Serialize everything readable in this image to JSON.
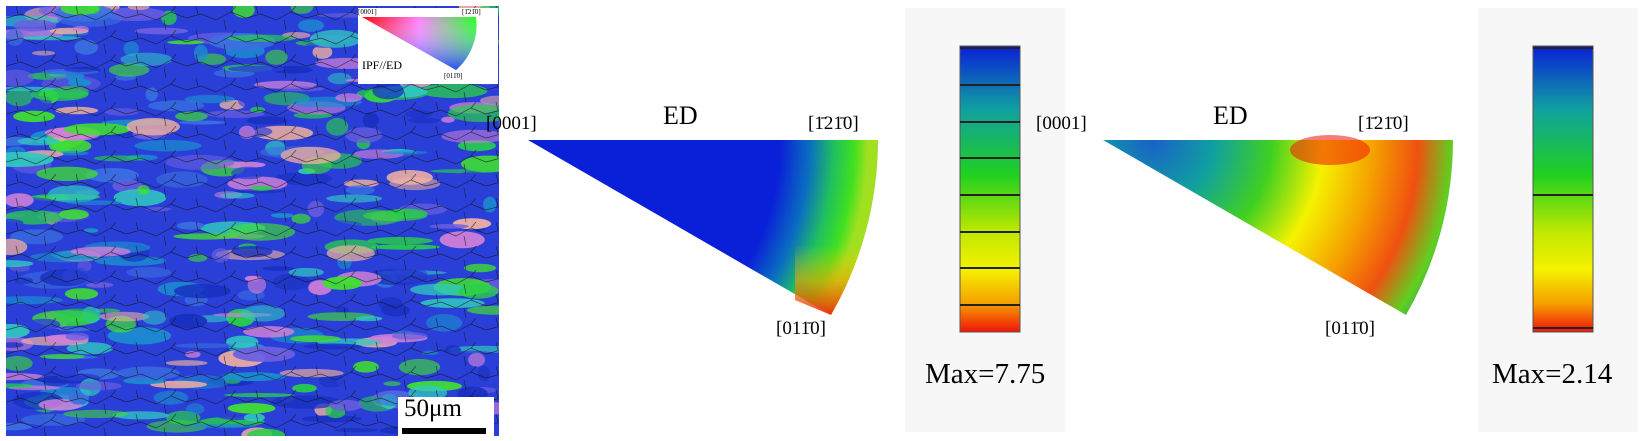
{
  "map_panel": {
    "ipf_key": {
      "corner_0001": "[0001]",
      "corner_m12m10": "[1̄21̄0]",
      "corner_01m10": "[011̄0]",
      "title": "IPF//ED"
    },
    "scale_bar": "50μm"
  },
  "ipf_panels": [
    {
      "direction": "ED",
      "corner_0001": "[0001]",
      "corner_m12m10": "[1̄21̄0]",
      "corner_01m10": "[011̄0]",
      "max_label": "Max=7.75"
    },
    {
      "direction": "ED",
      "corner_0001": "[0001]",
      "corner_m12m10": "[1̄21̄0]",
      "corner_01m10": "[011̄0]",
      "max_label": "Max=2.14"
    }
  ],
  "colors": {
    "blue": "#0a1fd8",
    "green": "#23dc23",
    "yellow": "#f5f200",
    "red": "#f0140a"
  }
}
